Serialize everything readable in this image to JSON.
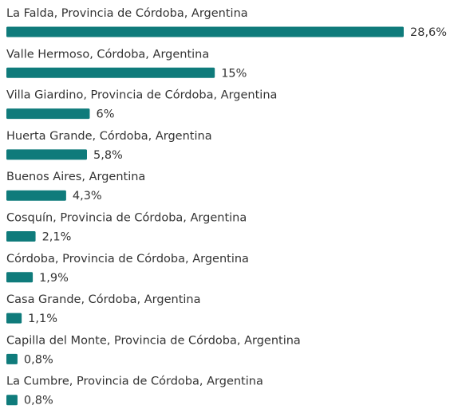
{
  "chart_data": {
    "type": "bar",
    "orientation": "horizontal",
    "categories": [
      "La Falda, Provincia de Córdoba, Argentina",
      "Valle Hermoso, Córdoba, Argentina",
      "Villa Giardino, Provincia de Córdoba, Argentina",
      "Huerta Grande, Córdoba, Argentina",
      "Buenos Aires, Argentina",
      "Cosquín, Provincia de Córdoba, Argentina",
      "Córdoba, Provincia de Córdoba, Argentina",
      "Casa Grande, Córdoba, Argentina",
      "Capilla del Monte, Provincia de Córdoba, Argentina",
      "La Cumbre, Provincia de Córdoba, Argentina"
    ],
    "values": [
      28.6,
      15,
      6,
      5.8,
      4.3,
      2.1,
      1.9,
      1.1,
      0.8,
      0.8
    ],
    "value_labels": [
      "28,6%",
      "15%",
      "6%",
      "5,8%",
      "4,3%",
      "2,1%",
      "1,9%",
      "1,1%",
      "0,8%",
      "0,8%"
    ],
    "color": "#0f7b7b"
  }
}
